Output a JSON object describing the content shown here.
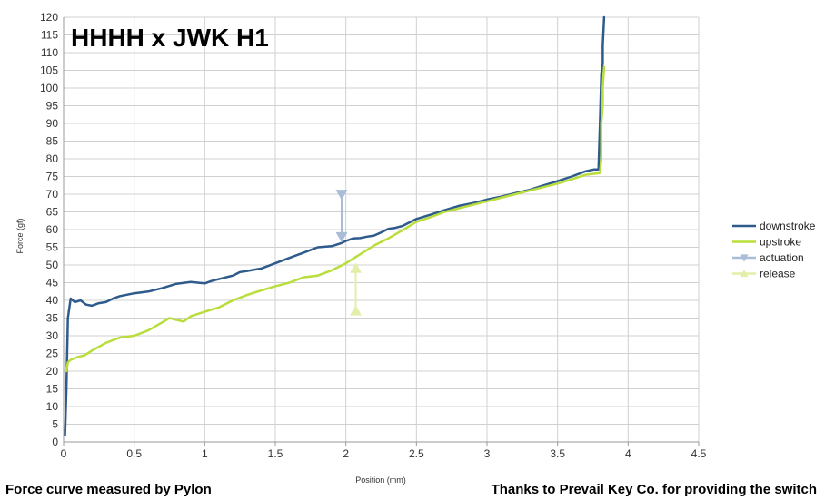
{
  "chart_data": {
    "type": "line",
    "title": "HHHH x JWK H1",
    "xlabel": "Position (mm)",
    "ylabel": "Force (gf)",
    "xlim": [
      0,
      4.5
    ],
    "ylim": [
      0,
      120
    ],
    "x_ticks": [
      0,
      0.5,
      1,
      1.5,
      2,
      2.5,
      3,
      3.5,
      4,
      4.5
    ],
    "y_ticks": [
      0,
      5,
      10,
      15,
      20,
      25,
      30,
      35,
      40,
      45,
      50,
      55,
      60,
      65,
      70,
      75,
      80,
      85,
      90,
      95,
      100,
      105,
      110,
      115,
      120
    ],
    "grid": true,
    "legend_position": "right",
    "series": [
      {
        "name": "downstroke",
        "color": "#2e5b8c",
        "points": [
          [
            0.01,
            2
          ],
          [
            0.02,
            15
          ],
          [
            0.03,
            35
          ],
          [
            0.05,
            40.5
          ],
          [
            0.08,
            39.5
          ],
          [
            0.12,
            40
          ],
          [
            0.16,
            38.8
          ],
          [
            0.2,
            38.5
          ],
          [
            0.25,
            39.2
          ],
          [
            0.3,
            39.5
          ],
          [
            0.35,
            40.5
          ],
          [
            0.4,
            41.2
          ],
          [
            0.5,
            42
          ],
          [
            0.6,
            42.5
          ],
          [
            0.7,
            43.5
          ],
          [
            0.8,
            44.7
          ],
          [
            0.9,
            45.2
          ],
          [
            1.0,
            44.8
          ],
          [
            1.05,
            45.5
          ],
          [
            1.1,
            46
          ],
          [
            1.2,
            47
          ],
          [
            1.25,
            48
          ],
          [
            1.3,
            48.3
          ],
          [
            1.4,
            49
          ],
          [
            1.5,
            50.5
          ],
          [
            1.6,
            52
          ],
          [
            1.7,
            53.5
          ],
          [
            1.8,
            55
          ],
          [
            1.9,
            55.3
          ],
          [
            1.97,
            56.2
          ],
          [
            2.0,
            56.8
          ],
          [
            2.05,
            57.5
          ],
          [
            2.1,
            57.6
          ],
          [
            2.15,
            58
          ],
          [
            2.2,
            58.3
          ],
          [
            2.25,
            59.2
          ],
          [
            2.3,
            60.2
          ],
          [
            2.35,
            60.5
          ],
          [
            2.4,
            61
          ],
          [
            2.5,
            63
          ],
          [
            2.6,
            64.2
          ],
          [
            2.7,
            65.5
          ],
          [
            2.8,
            66.7
          ],
          [
            2.9,
            67.5
          ],
          [
            3.0,
            68.5
          ],
          [
            3.1,
            69.3
          ],
          [
            3.2,
            70.3
          ],
          [
            3.3,
            71.2
          ],
          [
            3.4,
            72.5
          ],
          [
            3.5,
            73.7
          ],
          [
            3.6,
            75
          ],
          [
            3.7,
            76.5
          ],
          [
            3.76,
            77
          ],
          [
            3.79,
            77
          ],
          [
            3.8,
            90
          ],
          [
            3.81,
            104
          ],
          [
            3.82,
            107
          ],
          [
            3.82,
            112
          ],
          [
            3.83,
            120
          ]
        ]
      },
      {
        "name": "upstroke",
        "color": "#b9dd3a",
        "points": [
          [
            3.83,
            106
          ],
          [
            3.82,
            100
          ],
          [
            3.82,
            95
          ],
          [
            3.81,
            90
          ],
          [
            3.81,
            80
          ],
          [
            3.8,
            76
          ],
          [
            3.7,
            75.5
          ],
          [
            3.6,
            74.2
          ],
          [
            3.5,
            73
          ],
          [
            3.4,
            72
          ],
          [
            3.3,
            71
          ],
          [
            3.2,
            70
          ],
          [
            3.1,
            69
          ],
          [
            3.0,
            68
          ],
          [
            2.9,
            67
          ],
          [
            2.8,
            66
          ],
          [
            2.7,
            65
          ],
          [
            2.6,
            63.5
          ],
          [
            2.5,
            62.2
          ],
          [
            2.4,
            59.8
          ],
          [
            2.3,
            57.5
          ],
          [
            2.2,
            55.5
          ],
          [
            2.1,
            53
          ],
          [
            2.0,
            50.5
          ],
          [
            1.9,
            48.5
          ],
          [
            1.8,
            47
          ],
          [
            1.7,
            46.5
          ],
          [
            1.6,
            45
          ],
          [
            1.5,
            44
          ],
          [
            1.4,
            42.8
          ],
          [
            1.3,
            41.5
          ],
          [
            1.2,
            40
          ],
          [
            1.1,
            38
          ],
          [
            1.0,
            36.8
          ],
          [
            0.9,
            35.5
          ],
          [
            0.85,
            34
          ],
          [
            0.8,
            34.5
          ],
          [
            0.75,
            35
          ],
          [
            0.7,
            33.8
          ],
          [
            0.6,
            31.5
          ],
          [
            0.5,
            30
          ],
          [
            0.4,
            29.5
          ],
          [
            0.3,
            28
          ],
          [
            0.2,
            25.8
          ],
          [
            0.15,
            24.5
          ],
          [
            0.1,
            24
          ],
          [
            0.05,
            23.2
          ],
          [
            0.03,
            22.5
          ],
          [
            0.02,
            20
          ]
        ]
      },
      {
        "name": "actuation",
        "color": "#a9bdd6",
        "marker": "triangle-down",
        "points": [
          [
            1.97,
            70
          ],
          [
            1.97,
            58
          ]
        ]
      },
      {
        "name": "release",
        "color": "#e3efa8",
        "marker": "triangle-up",
        "points": [
          [
            2.07,
            37
          ],
          [
            2.07,
            49
          ]
        ]
      }
    ]
  },
  "footer": {
    "left": "Force curve measured by Pylon",
    "right": "Thanks to Prevail Key Co. for providing the switch"
  }
}
